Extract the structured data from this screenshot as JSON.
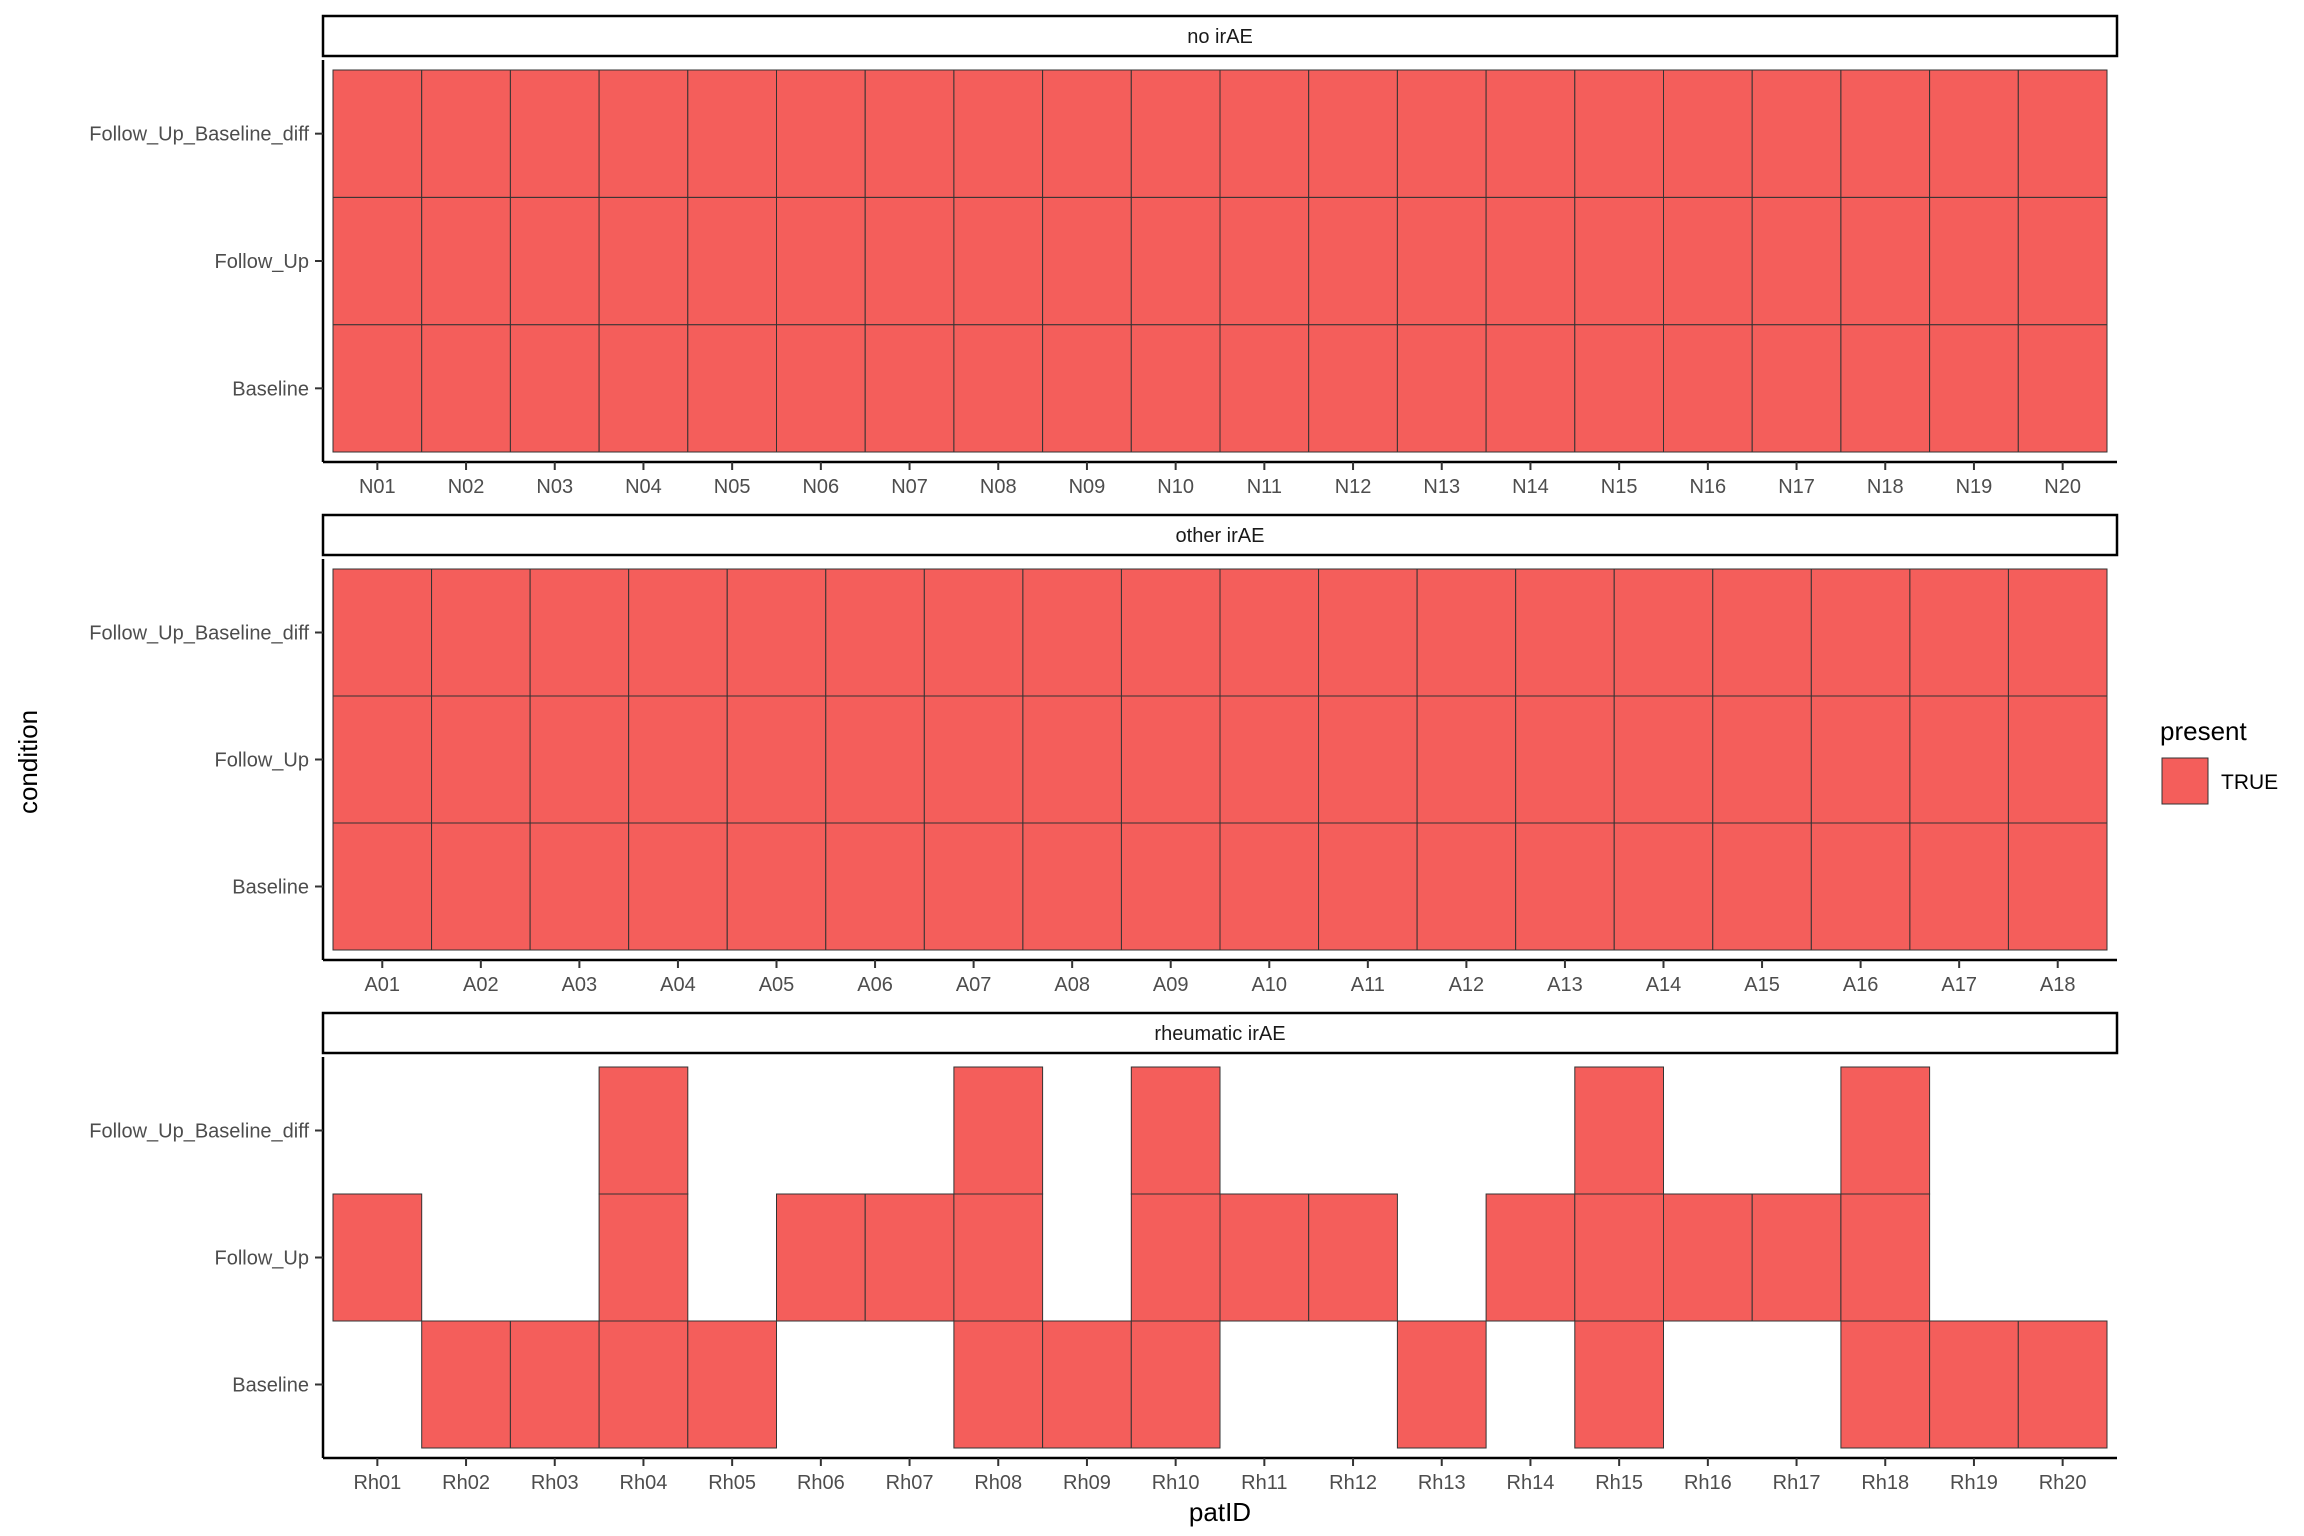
{
  "chart_data": {
    "type": "heatmap",
    "xlabel": "patID",
    "ylabel": "condition",
    "y_categories": [
      "Baseline",
      "Follow_Up",
      "Follow_Up_Baseline_diff"
    ],
    "legend": {
      "title": "present",
      "entries": [
        {
          "label": "TRUE",
          "color": "#F45E5B"
        }
      ],
      "position": "right"
    },
    "fill_color": "#F45E5B",
    "grid": false,
    "facets": [
      {
        "label": "no irAE",
        "x_categories": [
          "N01",
          "N02",
          "N03",
          "N04",
          "N05",
          "N06",
          "N07",
          "N08",
          "N09",
          "N10",
          "N11",
          "N12",
          "N13",
          "N14",
          "N15",
          "N16",
          "N17",
          "N18",
          "N19",
          "N20"
        ],
        "present": {
          "Baseline": [
            "N01",
            "N02",
            "N03",
            "N04",
            "N05",
            "N06",
            "N07",
            "N08",
            "N09",
            "N10",
            "N11",
            "N12",
            "N13",
            "N14",
            "N15",
            "N16",
            "N17",
            "N18",
            "N19",
            "N20"
          ],
          "Follow_Up": [
            "N01",
            "N02",
            "N03",
            "N04",
            "N05",
            "N06",
            "N07",
            "N08",
            "N09",
            "N10",
            "N11",
            "N12",
            "N13",
            "N14",
            "N15",
            "N16",
            "N17",
            "N18",
            "N19",
            "N20"
          ],
          "Follow_Up_Baseline_diff": [
            "N01",
            "N02",
            "N03",
            "N04",
            "N05",
            "N06",
            "N07",
            "N08",
            "N09",
            "N10",
            "N11",
            "N12",
            "N13",
            "N14",
            "N15",
            "N16",
            "N17",
            "N18",
            "N19",
            "N20"
          ]
        }
      },
      {
        "label": "other irAE",
        "x_categories": [
          "A01",
          "A02",
          "A03",
          "A04",
          "A05",
          "A06",
          "A07",
          "A08",
          "A09",
          "A10",
          "A11",
          "A12",
          "A13",
          "A14",
          "A15",
          "A16",
          "A17",
          "A18"
        ],
        "present": {
          "Baseline": [
            "A01",
            "A02",
            "A03",
            "A04",
            "A05",
            "A06",
            "A07",
            "A08",
            "A09",
            "A10",
            "A11",
            "A12",
            "A13",
            "A14",
            "A15",
            "A16",
            "A17",
            "A18"
          ],
          "Follow_Up": [
            "A01",
            "A02",
            "A03",
            "A04",
            "A05",
            "A06",
            "A07",
            "A08",
            "A09",
            "A10",
            "A11",
            "A12",
            "A13",
            "A14",
            "A15",
            "A16",
            "A17",
            "A18"
          ],
          "Follow_Up_Baseline_diff": [
            "A01",
            "A02",
            "A03",
            "A04",
            "A05",
            "A06",
            "A07",
            "A08",
            "A09",
            "A10",
            "A11",
            "A12",
            "A13",
            "A14",
            "A15",
            "A16",
            "A17",
            "A18"
          ]
        }
      },
      {
        "label": "rheumatic irAE",
        "x_categories": [
          "Rh01",
          "Rh02",
          "Rh03",
          "Rh04",
          "Rh05",
          "Rh06",
          "Rh07",
          "Rh08",
          "Rh09",
          "Rh10",
          "Rh11",
          "Rh12",
          "Rh13",
          "Rh14",
          "Rh15",
          "Rh16",
          "Rh17",
          "Rh18",
          "Rh19",
          "Rh20"
        ],
        "present": {
          "Baseline": [
            "Rh02",
            "Rh03",
            "Rh04",
            "Rh05",
            "Rh08",
            "Rh09",
            "Rh10",
            "Rh13",
            "Rh15",
            "Rh18",
            "Rh19",
            "Rh20"
          ],
          "Follow_Up": [
            "Rh01",
            "Rh04",
            "Rh06",
            "Rh07",
            "Rh08",
            "Rh10",
            "Rh11",
            "Rh12",
            "Rh14",
            "Rh15",
            "Rh16",
            "Rh17",
            "Rh18"
          ],
          "Follow_Up_Baseline_diff": [
            "Rh04",
            "Rh08",
            "Rh10",
            "Rh15",
            "Rh18"
          ]
        }
      }
    ]
  }
}
